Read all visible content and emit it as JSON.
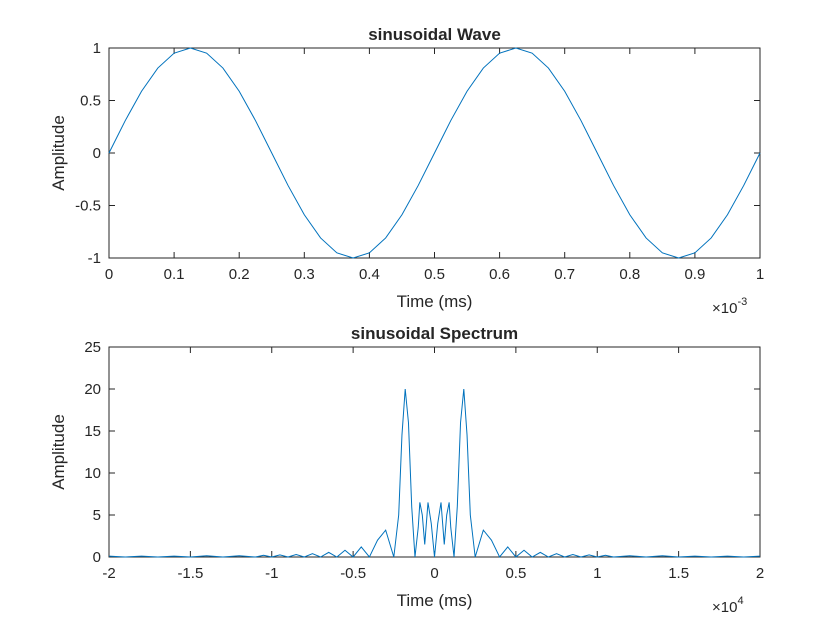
{
  "chart_data": [
    {
      "type": "line",
      "title": "sinusoidal Wave",
      "xlabel": "Time (ms)",
      "ylabel": "Amplitude",
      "x_exponent_prefix": "×10",
      "x_exponent": "-3",
      "xlim": [
        0,
        1
      ],
      "ylim": [
        -1,
        1
      ],
      "xticks": [
        0,
        0.1,
        0.2,
        0.3,
        0.4,
        0.5,
        0.6,
        0.7,
        0.8,
        0.9,
        1
      ],
      "xtick_labels": [
        "0",
        "0.1",
        "0.2",
        "0.3",
        "0.4",
        "0.5",
        "0.6",
        "0.7",
        "0.8",
        "0.9",
        "1"
      ],
      "yticks": [
        -1,
        -0.5,
        0,
        0.5,
        1
      ],
      "ytick_labels": [
        "-1",
        "-0.5",
        "0",
        "0.5",
        "1"
      ],
      "line_color": "#0072BD",
      "grid": false,
      "series": [
        {
          "x": [
            0,
            0.025,
            0.05,
            0.075,
            0.1,
            0.125,
            0.15,
            0.175,
            0.2,
            0.225,
            0.25,
            0.275,
            0.3,
            0.325,
            0.35,
            0.375,
            0.4,
            0.425,
            0.45,
            0.475,
            0.5,
            0.525,
            0.55,
            0.575,
            0.6,
            0.625,
            0.65,
            0.675,
            0.7,
            0.725,
            0.75,
            0.775,
            0.8,
            0.825,
            0.85,
            0.875,
            0.9,
            0.925,
            0.95,
            0.975,
            1
          ],
          "values": [
            0,
            0.309,
            0.588,
            0.809,
            0.951,
            1,
            0.951,
            0.809,
            0.588,
            0.309,
            0,
            -0.309,
            -0.588,
            -0.809,
            -0.951,
            -1,
            -0.951,
            -0.809,
            -0.588,
            -0.309,
            0,
            0.309,
            0.588,
            0.809,
            0.951,
            1,
            0.951,
            0.809,
            0.588,
            0.309,
            0,
            -0.309,
            -0.588,
            -0.809,
            -0.951,
            -1,
            -0.951,
            -0.809,
            -0.588,
            -0.309,
            0
          ]
        }
      ]
    },
    {
      "type": "line",
      "title": "sinusoidal Spectrum",
      "xlabel": "Time (ms)",
      "ylabel": "Amplitude",
      "x_exponent_prefix": "×10",
      "x_exponent": "4",
      "xlim": [
        -2,
        2
      ],
      "ylim": [
        0,
        25
      ],
      "xticks": [
        -2,
        -1.5,
        -1,
        -0.5,
        0,
        0.5,
        1,
        1.5,
        2
      ],
      "xtick_labels": [
        "-2",
        "-1.5",
        "-1",
        "-0.5",
        "0",
        "0.5",
        "1",
        "1.5",
        "2"
      ],
      "yticks": [
        0,
        5,
        10,
        15,
        20,
        25
      ],
      "ytick_labels": [
        "0",
        "5",
        "10",
        "15",
        "20",
        "25"
      ],
      "line_color": "#0072BD",
      "grid": false,
      "series": [
        {
          "x": [
            -2,
            -1.9,
            -1.8,
            -1.7,
            -1.6,
            -1.5,
            -1.4,
            -1.3,
            -1.2,
            -1.1,
            -1.05,
            -1.0,
            -0.95,
            -0.9,
            -0.85,
            -0.8,
            -0.75,
            -0.7,
            -0.65,
            -0.6,
            -0.55,
            -0.5,
            -0.45,
            -0.4,
            -0.35,
            -0.3,
            -0.25,
            -0.22,
            -0.2,
            -0.18,
            -0.16,
            -0.14,
            -0.12,
            -0.1,
            -0.09,
            -0.075,
            -0.06,
            -0.04,
            -0.02,
            0,
            0.02,
            0.04,
            0.06,
            0.075,
            0.09,
            0.1,
            0.12,
            0.14,
            0.16,
            0.18,
            0.2,
            0.22,
            0.25,
            0.3,
            0.35,
            0.4,
            0.45,
            0.5,
            0.55,
            0.6,
            0.65,
            0.7,
            0.75,
            0.8,
            0.85,
            0.9,
            0.95,
            1.0,
            1.05,
            1.1,
            1.2,
            1.3,
            1.4,
            1.5,
            1.6,
            1.7,
            1.8,
            1.9,
            2
          ],
          "values": [
            0.1,
            0.0,
            0.1,
            0.0,
            0.1,
            0.0,
            0.15,
            0.0,
            0.15,
            0.0,
            0.2,
            0.0,
            0.25,
            0.0,
            0.3,
            0.0,
            0.4,
            0.0,
            0.55,
            0.0,
            0.8,
            0.0,
            1.2,
            0.0,
            2.0,
            3.2,
            0.0,
            5.0,
            14.5,
            20.0,
            16.0,
            6.0,
            0.0,
            3.5,
            6.5,
            5.0,
            1.5,
            6.5,
            4.0,
            0.0,
            4.0,
            6.5,
            1.5,
            5.0,
            6.5,
            3.5,
            0.0,
            6.0,
            16.0,
            20.0,
            14.5,
            5.0,
            0.0,
            3.2,
            2.0,
            0.0,
            1.2,
            0.0,
            0.8,
            0.0,
            0.55,
            0.0,
            0.4,
            0.0,
            0.3,
            0.0,
            0.25,
            0.0,
            0.2,
            0.0,
            0.15,
            0.0,
            0.15,
            0.0,
            0.1,
            0.0,
            0.1,
            0.0,
            0.1
          ]
        }
      ]
    }
  ]
}
